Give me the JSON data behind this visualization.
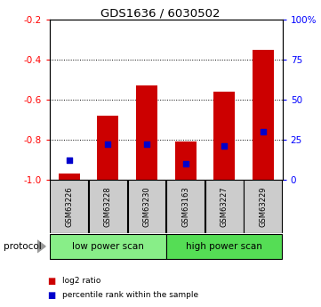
{
  "title": "GDS1636 / 6030502",
  "categories": [
    "GSM63226",
    "GSM63228",
    "GSM63230",
    "GSM63163",
    "GSM63227",
    "GSM63229"
  ],
  "log2_ratio": [
    -0.97,
    -0.68,
    -0.53,
    -0.81,
    -0.56,
    -0.35
  ],
  "percentile_rank": [
    12,
    22,
    22,
    10,
    21,
    30
  ],
  "bar_color": "#cc0000",
  "blue_color": "#0000cc",
  "ylim_left": [
    -1.0,
    -0.2
  ],
  "ylim_right": [
    0,
    100
  ],
  "right_ticks": [
    0,
    25,
    50,
    75,
    100
  ],
  "right_tick_labels": [
    "0",
    "25",
    "50",
    "75",
    "100%"
  ],
  "left_ticks": [
    -1.0,
    -0.8,
    -0.6,
    -0.4,
    -0.2
  ],
  "protocol_groups": [
    {
      "label": "low power scan",
      "indices": [
        0,
        1,
        2
      ],
      "color": "#88ee88"
    },
    {
      "label": "high power scan",
      "indices": [
        3,
        4,
        5
      ],
      "color": "#55dd55"
    }
  ],
  "legend_items": [
    {
      "color": "#cc0000",
      "label": "log2 ratio"
    },
    {
      "color": "#0000cc",
      "label": "percentile rank within the sample"
    }
  ],
  "bg_color": "#ffffff",
  "plot_bg": "#ffffff",
  "sample_bg": "#cccccc",
  "protocol_label": "protocol",
  "bar_width": 0.55
}
